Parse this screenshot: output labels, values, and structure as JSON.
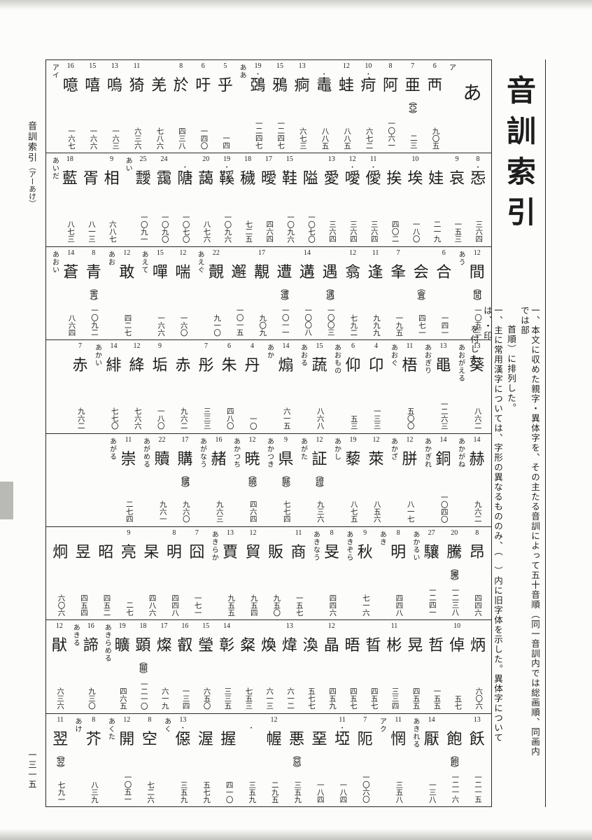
{
  "title": "音訓索引",
  "sidebar": {
    "title": "音訓索引",
    "range": "（アーあけ）"
  },
  "folio": "一三一五",
  "notes": [
    "一、本文に収めた親字・異体字を、その主たる音訓によって五十音順（同一音訓内では総画順、同画内では部",
    "首順）に排列した。",
    "一、主に常用漢字については、字形の異なるもののみ、（　）内に旧字体を示した。異体字については、・印",
    "を付した。"
  ],
  "rows": [
    [
      {
        "type": "h",
        "kanji": "あ"
      },
      {
        "type": "l",
        "text": "ア"
      },
      {
        "type": "e",
        "num": "6",
        "kanji": "襾",
        "page": "九〇五"
      },
      {
        "type": "e",
        "num": "7",
        "kanji": "亜",
        "var": "亞",
        "page": "二三"
      },
      {
        "type": "e",
        "num": "8",
        "kanji": "阿",
        "page": "一〇六一"
      },
      {
        "type": "e",
        "num": "10",
        "dot": true,
        "kanji": "疴",
        "page": "六七二"
      },
      {
        "type": "e",
        "num": "12",
        "kanji": "蛙",
        "page": "八八五"
      },
      {
        "type": "e",
        "dot": true,
        "kanji": "鼃",
        "page": "八八五"
      },
      {
        "type": "e",
        "num": "13",
        "kanji": "痾",
        "page": "六七三"
      },
      {
        "type": "e",
        "num": "15",
        "kanji": "鴉",
        "page": "一二四七"
      },
      {
        "type": "e",
        "num": "19",
        "dot": true,
        "kanji": "鵶",
        "page": "一二四七"
      },
      {
        "type": "l",
        "text": "ああ"
      },
      {
        "type": "e",
        "num": "5",
        "kanji": "乎",
        "page": "一四"
      },
      {
        "type": "e",
        "num": "6",
        "kanji": "吁",
        "page": "一四〇"
      },
      {
        "type": "e",
        "num": "8",
        "kanji": "於",
        "page": "四三八"
      },
      {
        "type": "e",
        "kanji": "羌",
        "page": "七八六"
      },
      {
        "type": "e",
        "num": "11",
        "kanji": "猗",
        "page": "六三六"
      },
      {
        "type": "e",
        "num": "13",
        "kanji": "嗚",
        "page": "一六三"
      },
      {
        "type": "e",
        "num": "15",
        "kanji": "嘻",
        "page": "一六六"
      },
      {
        "type": "e",
        "num": "16",
        "kanji": "噫",
        "page": "一六七"
      },
      {
        "type": "l",
        "text": "アイ"
      }
    ],
    [
      {
        "type": "e",
        "num": "8",
        "dot": true,
        "kanji": "㤅",
        "page": "三六四"
      },
      {
        "type": "e",
        "num": "9",
        "kanji": "哀",
        "page": "一五三"
      },
      {
        "type": "e",
        "kanji": "娃",
        "page": "二一九"
      },
      {
        "type": "e",
        "num": "10",
        "kanji": "埃",
        "page": "一八〇"
      },
      {
        "type": "e",
        "kanji": "挨",
        "page": "四〇二"
      },
      {
        "type": "e",
        "num": "11",
        "dot": true,
        "kanji": "僾",
        "page": "三六四"
      },
      {
        "type": "e",
        "num": "12",
        "dot": true,
        "kanji": "噯",
        "page": "三六四"
      },
      {
        "type": "e",
        "num": "13",
        "kanji": "愛",
        "page": "三六四"
      },
      {
        "type": "e",
        "kanji": "隘",
        "page": "一〇七〇"
      },
      {
        "type": "e",
        "num": "15",
        "kanji": "鞋",
        "page": "一〇九六"
      },
      {
        "type": "e",
        "num": "17",
        "kanji": "曖",
        "page": "四六四"
      },
      {
        "type": "e",
        "num": "18",
        "kanji": "穢",
        "page": "七二五"
      },
      {
        "type": "e",
        "num": "19",
        "dot": true,
        "kanji": "鞵",
        "page": "一〇九六"
      },
      {
        "type": "e",
        "num": "20",
        "kanji": "藹",
        "page": "八七六"
      },
      {
        "type": "e",
        "dot": true,
        "kanji": "䧜",
        "page": "一〇七〇"
      },
      {
        "type": "e",
        "num": "24",
        "kanji": "靄",
        "page": "一〇九〇"
      },
      {
        "type": "e",
        "num": "25",
        "kanji": "靉",
        "page": "一〇九一"
      },
      {
        "type": "l",
        "text": "あい"
      },
      {
        "type": "e",
        "num": "9",
        "kanji": "相",
        "page": "六八七"
      },
      {
        "type": "e",
        "kanji": "胥",
        "page": "八一三"
      },
      {
        "type": "e",
        "num": "18",
        "kanji": "藍",
        "page": "八七三"
      },
      {
        "type": "l",
        "text": "あいだ"
      }
    ],
    [
      {
        "type": "e",
        "num": "12",
        "kanji": "間",
        "var": "閒",
        "page": "一〇五三"
      },
      {
        "type": "l",
        "text": "あう"
      },
      {
        "type": "e",
        "num": "6",
        "kanji": "合",
        "page": "一四一"
      },
      {
        "type": "e",
        "kanji": "会",
        "var": "會",
        "page": "四七一"
      },
      {
        "type": "e",
        "num": "7",
        "kanji": "夆",
        "page": "一九五"
      },
      {
        "type": "e",
        "num": "11",
        "kanji": "逢",
        "page": "九九九"
      },
      {
        "type": "e",
        "num": "12",
        "kanji": "翕",
        "page": "七九二"
      },
      {
        "type": "e",
        "kanji": "遇",
        "var": "遇",
        "page": "一〇〇三"
      },
      {
        "type": "e",
        "num": "14",
        "kanji": "遘",
        "page": "一〇〇八"
      },
      {
        "type": "e",
        "kanji": "遭",
        "var": "遭",
        "page": "一〇一一"
      },
      {
        "type": "e",
        "num": "17",
        "kanji": "覯",
        "page": "九〇九"
      },
      {
        "type": "e",
        "kanji": "邂",
        "page": "一〇一五"
      },
      {
        "type": "e",
        "num": "22",
        "kanji": "覿",
        "page": "九一〇"
      },
      {
        "type": "l",
        "text": "あえぐ"
      },
      {
        "type": "e",
        "num": "12",
        "kanji": "喘",
        "page": "一六〇"
      },
      {
        "type": "e",
        "num": "15",
        "kanji": "嘽",
        "page": "一六六"
      },
      {
        "type": "l",
        "text": "あえて"
      },
      {
        "type": "e",
        "num": "12",
        "kanji": "敢",
        "page": "四二七"
      },
      {
        "type": "l",
        "text": "あお"
      },
      {
        "type": "e",
        "num": "8",
        "kanji": "青",
        "var": "靑",
        "page": "一〇九二"
      },
      {
        "type": "e",
        "num": "14",
        "kanji": "蒼",
        "page": "八六四"
      },
      {
        "type": "l",
        "text": "あおい"
      }
    ],
    [
      {
        "type": "e",
        "num": "13",
        "kanji": "葵",
        "page": "八六二"
      },
      {
        "type": "l",
        "text": "あおがえる"
      },
      {
        "type": "e",
        "num": "13",
        "kanji": "黽",
        "page": "一二六三"
      },
      {
        "type": "l",
        "text": "あおぎり"
      },
      {
        "type": "e",
        "num": "11",
        "kanji": "梧",
        "page": "五〇〇"
      },
      {
        "type": "l",
        "text": "あおぐ"
      },
      {
        "type": "e",
        "num": "4",
        "kanji": "卬",
        "page": "一三三"
      },
      {
        "type": "e",
        "num": "6",
        "kanji": "仰",
        "page": "五三"
      },
      {
        "type": "l",
        "text": "あおもの"
      },
      {
        "type": "e",
        "num": "15",
        "kanji": "蔬",
        "page": "八六八"
      },
      {
        "type": "l",
        "text": "あおる"
      },
      {
        "type": "e",
        "num": "14",
        "kanji": "煽",
        "page": "六一五"
      },
      {
        "type": "l",
        "text": "あか"
      },
      {
        "type": "e",
        "num": "4",
        "kanji": "丹",
        "page": "一〇"
      },
      {
        "type": "e",
        "num": "6",
        "kanji": "朱",
        "page": "四八〇"
      },
      {
        "type": "e",
        "num": "7",
        "kanji": "彤",
        "page": "三三三"
      },
      {
        "type": "e",
        "kanji": "赤",
        "page": "九六二"
      },
      {
        "type": "e",
        "num": "9",
        "kanji": "垢",
        "page": "一八〇"
      },
      {
        "type": "e",
        "num": "12",
        "kanji": "絳",
        "page": "七六六"
      },
      {
        "type": "e",
        "num": "14",
        "kanji": "緋",
        "page": "七七〇"
      },
      {
        "type": "l",
        "text": "あかい"
      },
      {
        "type": "e",
        "num": "7",
        "kanji": "赤",
        "page": "九六二"
      }
    ],
    [
      {
        "type": "e",
        "num": "14",
        "kanji": "赫",
        "page": "九六二"
      },
      {
        "type": "l",
        "text": "あかがね"
      },
      {
        "type": "e",
        "num": "14",
        "kanji": "銅",
        "page": "一〇四〇"
      },
      {
        "type": "l",
        "text": "あかぎれ"
      },
      {
        "type": "e",
        "num": "12",
        "kanji": "胼",
        "page": "八一七"
      },
      {
        "type": "l",
        "text": "あかざ"
      },
      {
        "type": "e",
        "num": "12",
        "kanji": "萊",
        "page": "八五六"
      },
      {
        "type": "e",
        "num": "19",
        "kanji": "藜",
        "page": "八七五"
      },
      {
        "type": "l",
        "text": "あかし"
      },
      {
        "type": "e",
        "num": "12",
        "kanji": "証",
        "var": "證",
        "page": "九三六"
      },
      {
        "type": "l",
        "text": "あがた"
      },
      {
        "type": "e",
        "num": "9",
        "kanji": "県",
        "var": "縣",
        "page": "七七四"
      },
      {
        "type": "l",
        "text": "あかつき"
      },
      {
        "type": "e",
        "num": "12",
        "kanji": "暁",
        "var": "曉",
        "page": "四六四"
      },
      {
        "type": "l",
        "text": "あかつち"
      },
      {
        "type": "e",
        "num": "16",
        "kanji": "赭",
        "page": "九六三"
      },
      {
        "type": "l",
        "text": "あがなう"
      },
      {
        "type": "e",
        "num": "17",
        "kanji": "購",
        "var": "購",
        "page": "九六〇"
      },
      {
        "type": "e",
        "num": "22",
        "kanji": "贖",
        "page": "九六一"
      },
      {
        "type": "l",
        "text": "あがめる"
      },
      {
        "type": "e",
        "num": "11",
        "kanji": "崇",
        "page": "二七四"
      },
      {
        "type": "l",
        "text": "あがる"
      }
    ],
    [
      {
        "type": "e",
        "num": "8",
        "kanji": "昂",
        "page": "四四六"
      },
      {
        "type": "e",
        "num": "20",
        "kanji": "騰",
        "var": "騰",
        "page": "一二三八"
      },
      {
        "type": "e",
        "num": "27",
        "kanji": "驤",
        "page": "一二四一"
      },
      {
        "type": "l",
        "text": "あかるい"
      },
      {
        "type": "e",
        "num": "8",
        "kanji": "明",
        "page": "四四八"
      },
      {
        "type": "l",
        "text": "あき"
      },
      {
        "type": "e",
        "num": "9",
        "kanji": "秋",
        "page": "七一六"
      },
      {
        "type": "l",
        "text": "あきぞら"
      },
      {
        "type": "e",
        "num": "8",
        "kanji": "旻",
        "page": "四四六"
      },
      {
        "type": "l",
        "text": "あきなう"
      },
      {
        "type": "e",
        "num": "11",
        "kanji": "商",
        "page": "一五七"
      },
      {
        "type": "e",
        "kanji": "販",
        "page": "九五〇"
      },
      {
        "type": "e",
        "num": "12",
        "kanji": "貿",
        "page": "九五四"
      },
      {
        "type": "e",
        "num": "13",
        "kanji": "賈",
        "page": "九五五"
      },
      {
        "type": "l",
        "text": "あきらか"
      },
      {
        "type": "e",
        "num": "7",
        "kanji": "囧",
        "page": "一七一"
      },
      {
        "type": "e",
        "num": "8",
        "kanji": "明",
        "page": "四四八"
      },
      {
        "type": "e",
        "kanji": "杲",
        "page": "四八六"
      },
      {
        "type": "e",
        "num": "9",
        "kanji": "亮",
        "page": "二七"
      },
      {
        "type": "e",
        "kanji": "昭",
        "page": "四五二"
      },
      {
        "type": "e",
        "kanji": "昱",
        "page": "四五四"
      },
      {
        "type": "e",
        "kanji": "炯",
        "page": "六〇六"
      }
    ],
    [
      {
        "type": "e",
        "kanji": "炳",
        "page": "六〇六"
      },
      {
        "type": "e",
        "num": "10",
        "kanji": "倬",
        "page": "五七"
      },
      {
        "type": "e",
        "kanji": "哲",
        "page": "一五五"
      },
      {
        "type": "e",
        "kanji": "晃",
        "page": "四五五"
      },
      {
        "type": "e",
        "num": "11",
        "kanji": "彬",
        "page": "三三四"
      },
      {
        "type": "e",
        "kanji": "晢",
        "page": "四五七"
      },
      {
        "type": "e",
        "kanji": "晤",
        "page": "四五七"
      },
      {
        "type": "e",
        "num": "12",
        "kanji": "晶",
        "page": "四五九"
      },
      {
        "type": "e",
        "kanji": "渙",
        "page": "五七七"
      },
      {
        "type": "e",
        "num": "13",
        "kanji": "煒",
        "page": "六一二"
      },
      {
        "type": "e",
        "kanji": "煥",
        "page": "六一三"
      },
      {
        "type": "e",
        "kanji": "粲",
        "page": "七五三"
      },
      {
        "type": "e",
        "num": "14",
        "kanji": "彰",
        "page": "三三五"
      },
      {
        "type": "e",
        "num": "15",
        "kanji": "瑩",
        "page": "六五〇"
      },
      {
        "type": "e",
        "num": "16",
        "kanji": "叡",
        "page": "一三四"
      },
      {
        "type": "e",
        "num": "17",
        "kanji": "燦",
        "page": "六一九"
      },
      {
        "type": "e",
        "num": "18",
        "kanji": "顕",
        "var": "顯",
        "page": "一二一〇"
      },
      {
        "type": "e",
        "num": "19",
        "kanji": "曠",
        "page": "四六五"
      },
      {
        "type": "l",
        "text": "あきらめる"
      },
      {
        "type": "e",
        "num": "16",
        "kanji": "諦",
        "page": "九三〇"
      },
      {
        "type": "l",
        "text": "あきる"
      },
      {
        "type": "e",
        "num": "12",
        "kanji": "猒",
        "page": "六三六"
      }
    ],
    [
      {
        "type": "e",
        "num": "13",
        "kanji": "飫",
        "page": "一二一五"
      },
      {
        "type": "e",
        "kanji": "飽",
        "var": "飽",
        "page": "一二一六"
      },
      {
        "type": "e",
        "num": "14",
        "kanji": "厭",
        "page": "一三八"
      },
      {
        "type": "l",
        "text": "あきれる"
      },
      {
        "type": "e",
        "num": "11",
        "kanji": "惘",
        "page": "三五八"
      },
      {
        "type": "l",
        "text": "アク"
      },
      {
        "type": "e",
        "num": "7",
        "kanji": "阨",
        "page": "一〇六〇"
      },
      {
        "type": "e",
        "num": "11",
        "dot": true,
        "kanji": "埡",
        "page": "一八四"
      },
      {
        "type": "e",
        "kanji": "堊",
        "page": "一八四"
      },
      {
        "type": "e",
        "kanji": "悪",
        "var": "惡",
        "page": "三五九"
      },
      {
        "type": "e",
        "num": "12",
        "kanji": "幄",
        "page": "二九五"
      },
      {
        "type": "e",
        "dot": true,
        "kanji": "𢙣",
        "page": "三五九"
      },
      {
        "type": "e",
        "kanji": "握",
        "page": "四一〇"
      },
      {
        "type": "e",
        "kanji": "渥",
        "page": "五七九"
      },
      {
        "type": "e",
        "num": "13",
        "dot": true,
        "kanji": "僫",
        "page": "三五九"
      },
      {
        "type": "l",
        "text": "あく"
      },
      {
        "type": "e",
        "num": "8",
        "kanji": "空",
        "page": "七二六"
      },
      {
        "type": "e",
        "num": "12",
        "kanji": "開",
        "page": "一〇五一"
      },
      {
        "type": "l",
        "text": "あくた"
      },
      {
        "type": "e",
        "num": "8",
        "kanji": "芥",
        "page": "八三九"
      },
      {
        "type": "l",
        "text": "あけ"
      },
      {
        "type": "e",
        "num": "11",
        "kanji": "翌",
        "var": "翌",
        "page": "七九一"
      }
    ]
  ]
}
